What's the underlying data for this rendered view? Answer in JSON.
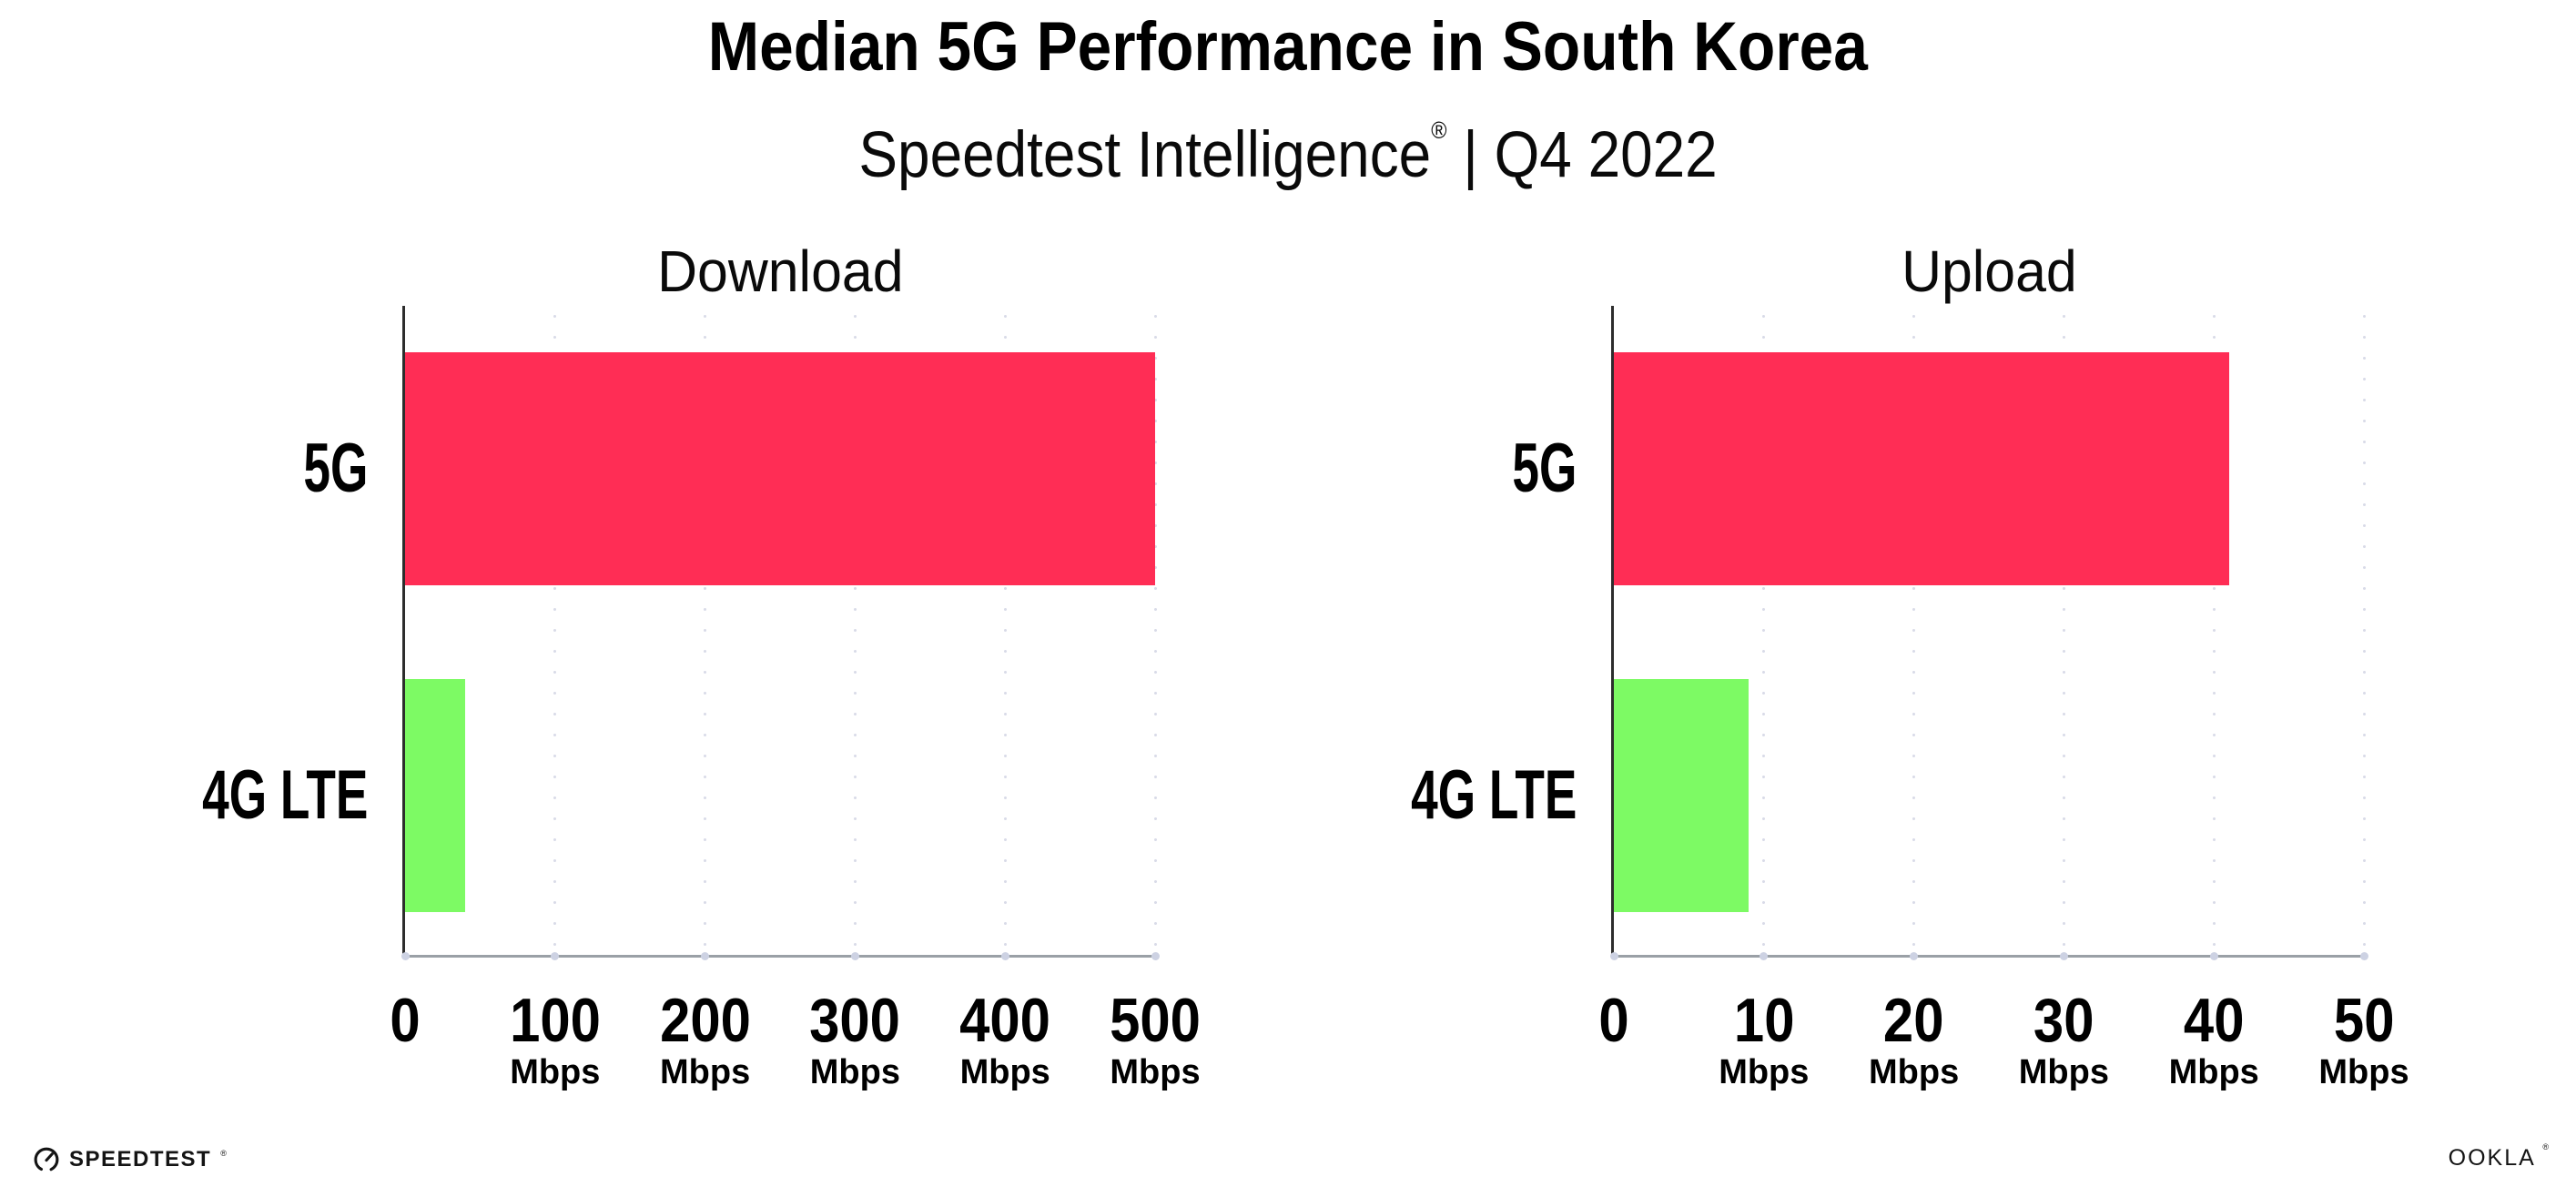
{
  "header": {
    "title": "Median 5G Performance in South Korea",
    "subtitle": {
      "brand": "Speedtest Intelligence",
      "reg": "®",
      "rest": " | Q4 2022"
    }
  },
  "chart_data": [
    {
      "type": "bar",
      "orientation": "horizontal",
      "title": "Download",
      "categories": [
        "5G",
        "4G LTE"
      ],
      "values": [
        500,
        40
      ],
      "unit": "Mbps",
      "xlim": [
        0,
        500
      ],
      "xticks": [
        0,
        100,
        200,
        300,
        400,
        500
      ],
      "xtick_unit": "Mbps",
      "bar_colors": [
        "#FF2D55",
        "#7DFA64"
      ],
      "grid": "vertical-dotted",
      "legend": "none"
    },
    {
      "type": "bar",
      "orientation": "horizontal",
      "title": "Upload",
      "categories": [
        "5G",
        "4G LTE"
      ],
      "values": [
        41,
        9
      ],
      "unit": "Mbps",
      "xlim": [
        0,
        50
      ],
      "xticks": [
        0,
        10,
        20,
        30,
        40,
        50
      ],
      "xtick_unit": "Mbps",
      "bar_colors": [
        "#FF2D55",
        "#7DFA64"
      ],
      "grid": "vertical-dotted",
      "legend": "none"
    }
  ],
  "footer": {
    "speedtest": {
      "label": "SPEEDTEST",
      "reg": "®",
      "icon": "speedtest-gauge-icon"
    },
    "ookla": {
      "label": "OOKLA",
      "reg": "®"
    }
  },
  "colors": {
    "bar_5g": "#FF2D55",
    "bar_4g_lte": "#7DFA64",
    "axis_line": "#2d2d2d",
    "baseline": "#9aa0a6",
    "grid_dot": "#d9dbe8",
    "tick_dot": "#cdd2e3",
    "text": "#000000",
    "background": "#ffffff"
  }
}
